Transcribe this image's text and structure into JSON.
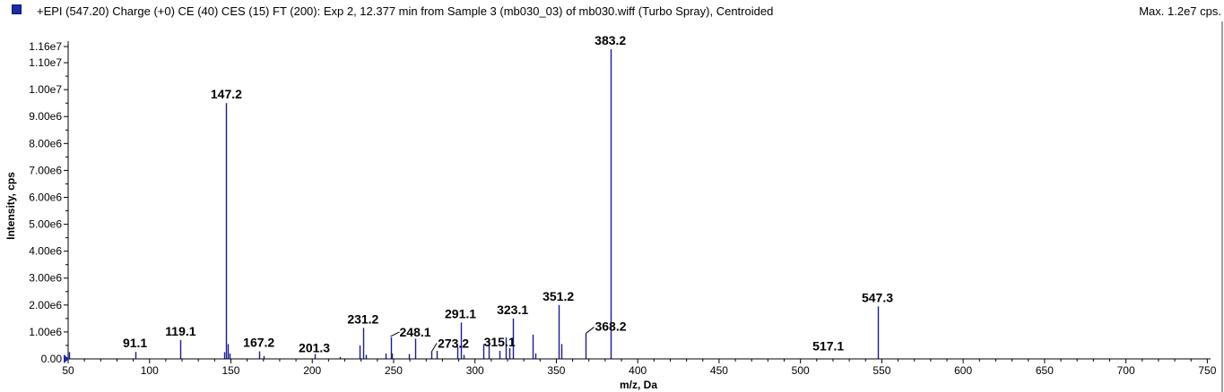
{
  "header": {
    "title": "+EPI (547.20) Charge (+0) CE (40) CES (15) FT (200): Exp 2, 12.377 min from Sample 3 (mb030_03) of mb030.wiff (Turbo Spray), Centroided",
    "max_info": "Max. 1.2e7 cps.",
    "legend_color": "#1a2aa8"
  },
  "chart_data": {
    "type": "bar",
    "xlabel": "m/z, Da",
    "ylabel": "Intensity, cps",
    "xlim": [
      50,
      752
    ],
    "ylim": [
      0,
      11800000
    ],
    "grid": false,
    "series_color": "#1a1a9a",
    "x_ticks": [
      {
        "value": 50,
        "label": "50"
      },
      {
        "value": 100,
        "label": "100"
      },
      {
        "value": 150,
        "label": "150"
      },
      {
        "value": 200,
        "label": "200"
      },
      {
        "value": 250,
        "label": "250"
      },
      {
        "value": 300,
        "label": "300"
      },
      {
        "value": 350,
        "label": "350"
      },
      {
        "value": 400,
        "label": "400"
      },
      {
        "value": 450,
        "label": "450"
      },
      {
        "value": 500,
        "label": "500"
      },
      {
        "value": 550,
        "label": "550"
      },
      {
        "value": 600,
        "label": "600"
      },
      {
        "value": 650,
        "label": "650"
      },
      {
        "value": 700,
        "label": "700"
      },
      {
        "value": 750,
        "label": "750"
      }
    ],
    "y_ticks": [
      {
        "value": 0,
        "label": "0.00"
      },
      {
        "value": 1000000,
        "label": "1.00e6"
      },
      {
        "value": 2000000,
        "label": "2.00e6"
      },
      {
        "value": 3000000,
        "label": "3.00e6"
      },
      {
        "value": 4000000,
        "label": "4.00e6"
      },
      {
        "value": 5000000,
        "label": "5.00e6"
      },
      {
        "value": 6000000,
        "label": "6.00e6"
      },
      {
        "value": 7000000,
        "label": "7.00e6"
      },
      {
        "value": 8000000,
        "label": "8.00e6"
      },
      {
        "value": 9000000,
        "label": "9.00e6"
      },
      {
        "value": 10000000,
        "label": "1.00e7"
      },
      {
        "value": 11000000,
        "label": "1.10e7"
      },
      {
        "value": 11600000,
        "label": "1.16e7"
      }
    ],
    "peaks": [
      {
        "mz": 50.5,
        "intensity": 250000
      },
      {
        "mz": 91.1,
        "intensity": 260000
      },
      {
        "mz": 119.1,
        "intensity": 700000
      },
      {
        "mz": 146.0,
        "intensity": 250000
      },
      {
        "mz": 147.2,
        "intensity": 9500000
      },
      {
        "mz": 148.2,
        "intensity": 550000
      },
      {
        "mz": 149.2,
        "intensity": 200000
      },
      {
        "mz": 167.2,
        "intensity": 280000
      },
      {
        "mz": 170.1,
        "intensity": 100000
      },
      {
        "mz": 201.3,
        "intensity": 180000
      },
      {
        "mz": 217.1,
        "intensity": 70000
      },
      {
        "mz": 229.2,
        "intensity": 500000
      },
      {
        "mz": 231.2,
        "intensity": 1150000
      },
      {
        "mz": 233.2,
        "intensity": 150000
      },
      {
        "mz": 245.1,
        "intensity": 200000
      },
      {
        "mz": 248.1,
        "intensity": 800000
      },
      {
        "mz": 249.1,
        "intensity": 200000
      },
      {
        "mz": 259.2,
        "intensity": 180000
      },
      {
        "mz": 263.2,
        "intensity": 750000
      },
      {
        "mz": 273.2,
        "intensity": 250000
      },
      {
        "mz": 276.2,
        "intensity": 300000
      },
      {
        "mz": 289.1,
        "intensity": 450000
      },
      {
        "mz": 291.1,
        "intensity": 1350000
      },
      {
        "mz": 293.1,
        "intensity": 150000
      },
      {
        "mz": 305.1,
        "intensity": 550000
      },
      {
        "mz": 308.2,
        "intensity": 700000
      },
      {
        "mz": 315.1,
        "intensity": 300000
      },
      {
        "mz": 319.1,
        "intensity": 800000
      },
      {
        "mz": 321.1,
        "intensity": 400000
      },
      {
        "mz": 323.1,
        "intensity": 1500000
      },
      {
        "mz": 335.2,
        "intensity": 900000
      },
      {
        "mz": 337.2,
        "intensity": 200000
      },
      {
        "mz": 351.2,
        "intensity": 2000000
      },
      {
        "mz": 353.2,
        "intensity": 550000
      },
      {
        "mz": 368.2,
        "intensity": 950000
      },
      {
        "mz": 383.2,
        "intensity": 11500000
      },
      {
        "mz": 547.3,
        "intensity": 1950000
      }
    ],
    "annotations": [
      {
        "label": "91.1",
        "mz": 91.1,
        "intensity": 260000
      },
      {
        "label": "119.1",
        "mz": 119.1,
        "intensity": 700000
      },
      {
        "label": "147.2",
        "mz": 147.2,
        "intensity": 9500000
      },
      {
        "label": "167.2",
        "mz": 167.2,
        "intensity": 280000
      },
      {
        "label": "201.3",
        "mz": 201.3,
        "intensity": 180000
      },
      {
        "label": "231.2",
        "mz": 231.2,
        "intensity": 1150000
      },
      {
        "label": "248.1",
        "mz": 248.1,
        "intensity": 800000
      },
      {
        "label": "273.2",
        "mz": 273.2,
        "intensity": 250000
      },
      {
        "label": "291.1",
        "mz": 291.1,
        "intensity": 1350000
      },
      {
        "label": "315.1",
        "mz": 315.1,
        "intensity": 300000
      },
      {
        "label": "323.1",
        "mz": 323.1,
        "intensity": 1500000
      },
      {
        "label": "351.2",
        "mz": 351.2,
        "intensity": 2000000
      },
      {
        "label": "368.2",
        "mz": 368.2,
        "intensity": 950000
      },
      {
        "label": "383.2",
        "mz": 383.2,
        "intensity": 11500000
      },
      {
        "label": "517.1",
        "mz": 517.1,
        "intensity": 20000
      },
      {
        "label": "547.3",
        "mz": 547.3,
        "intensity": 1950000
      }
    ]
  }
}
